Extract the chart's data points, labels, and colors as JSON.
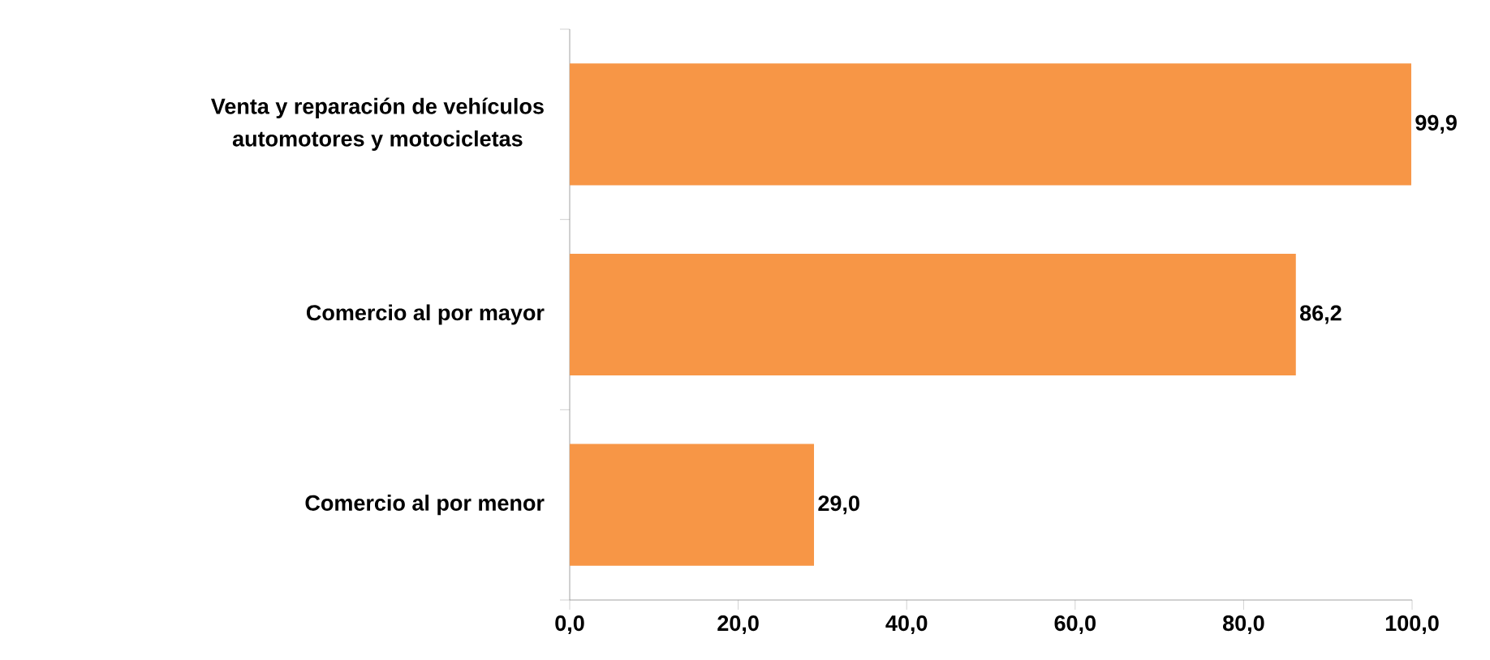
{
  "chart_data": {
    "type": "bar",
    "orientation": "horizontal",
    "categories": [
      "Venta y reparación de vehículos automotores y motocicletas",
      "Comercio al por mayor",
      "Comercio al por menor"
    ],
    "values": [
      99.9,
      86.2,
      29.0
    ],
    "value_labels": [
      "99,9",
      "86,2",
      "29,0"
    ],
    "color": "#f79646",
    "xlim": [
      0,
      100
    ],
    "xticks": [
      {
        "value": 0,
        "label": "0,0"
      },
      {
        "value": 20,
        "label": "20,0"
      },
      {
        "value": 40,
        "label": "40,0"
      },
      {
        "value": 60,
        "label": "60,0"
      },
      {
        "value": 80,
        "label": "80,0"
      },
      {
        "value": 100,
        "label": "100,0"
      }
    ],
    "grid": false
  }
}
